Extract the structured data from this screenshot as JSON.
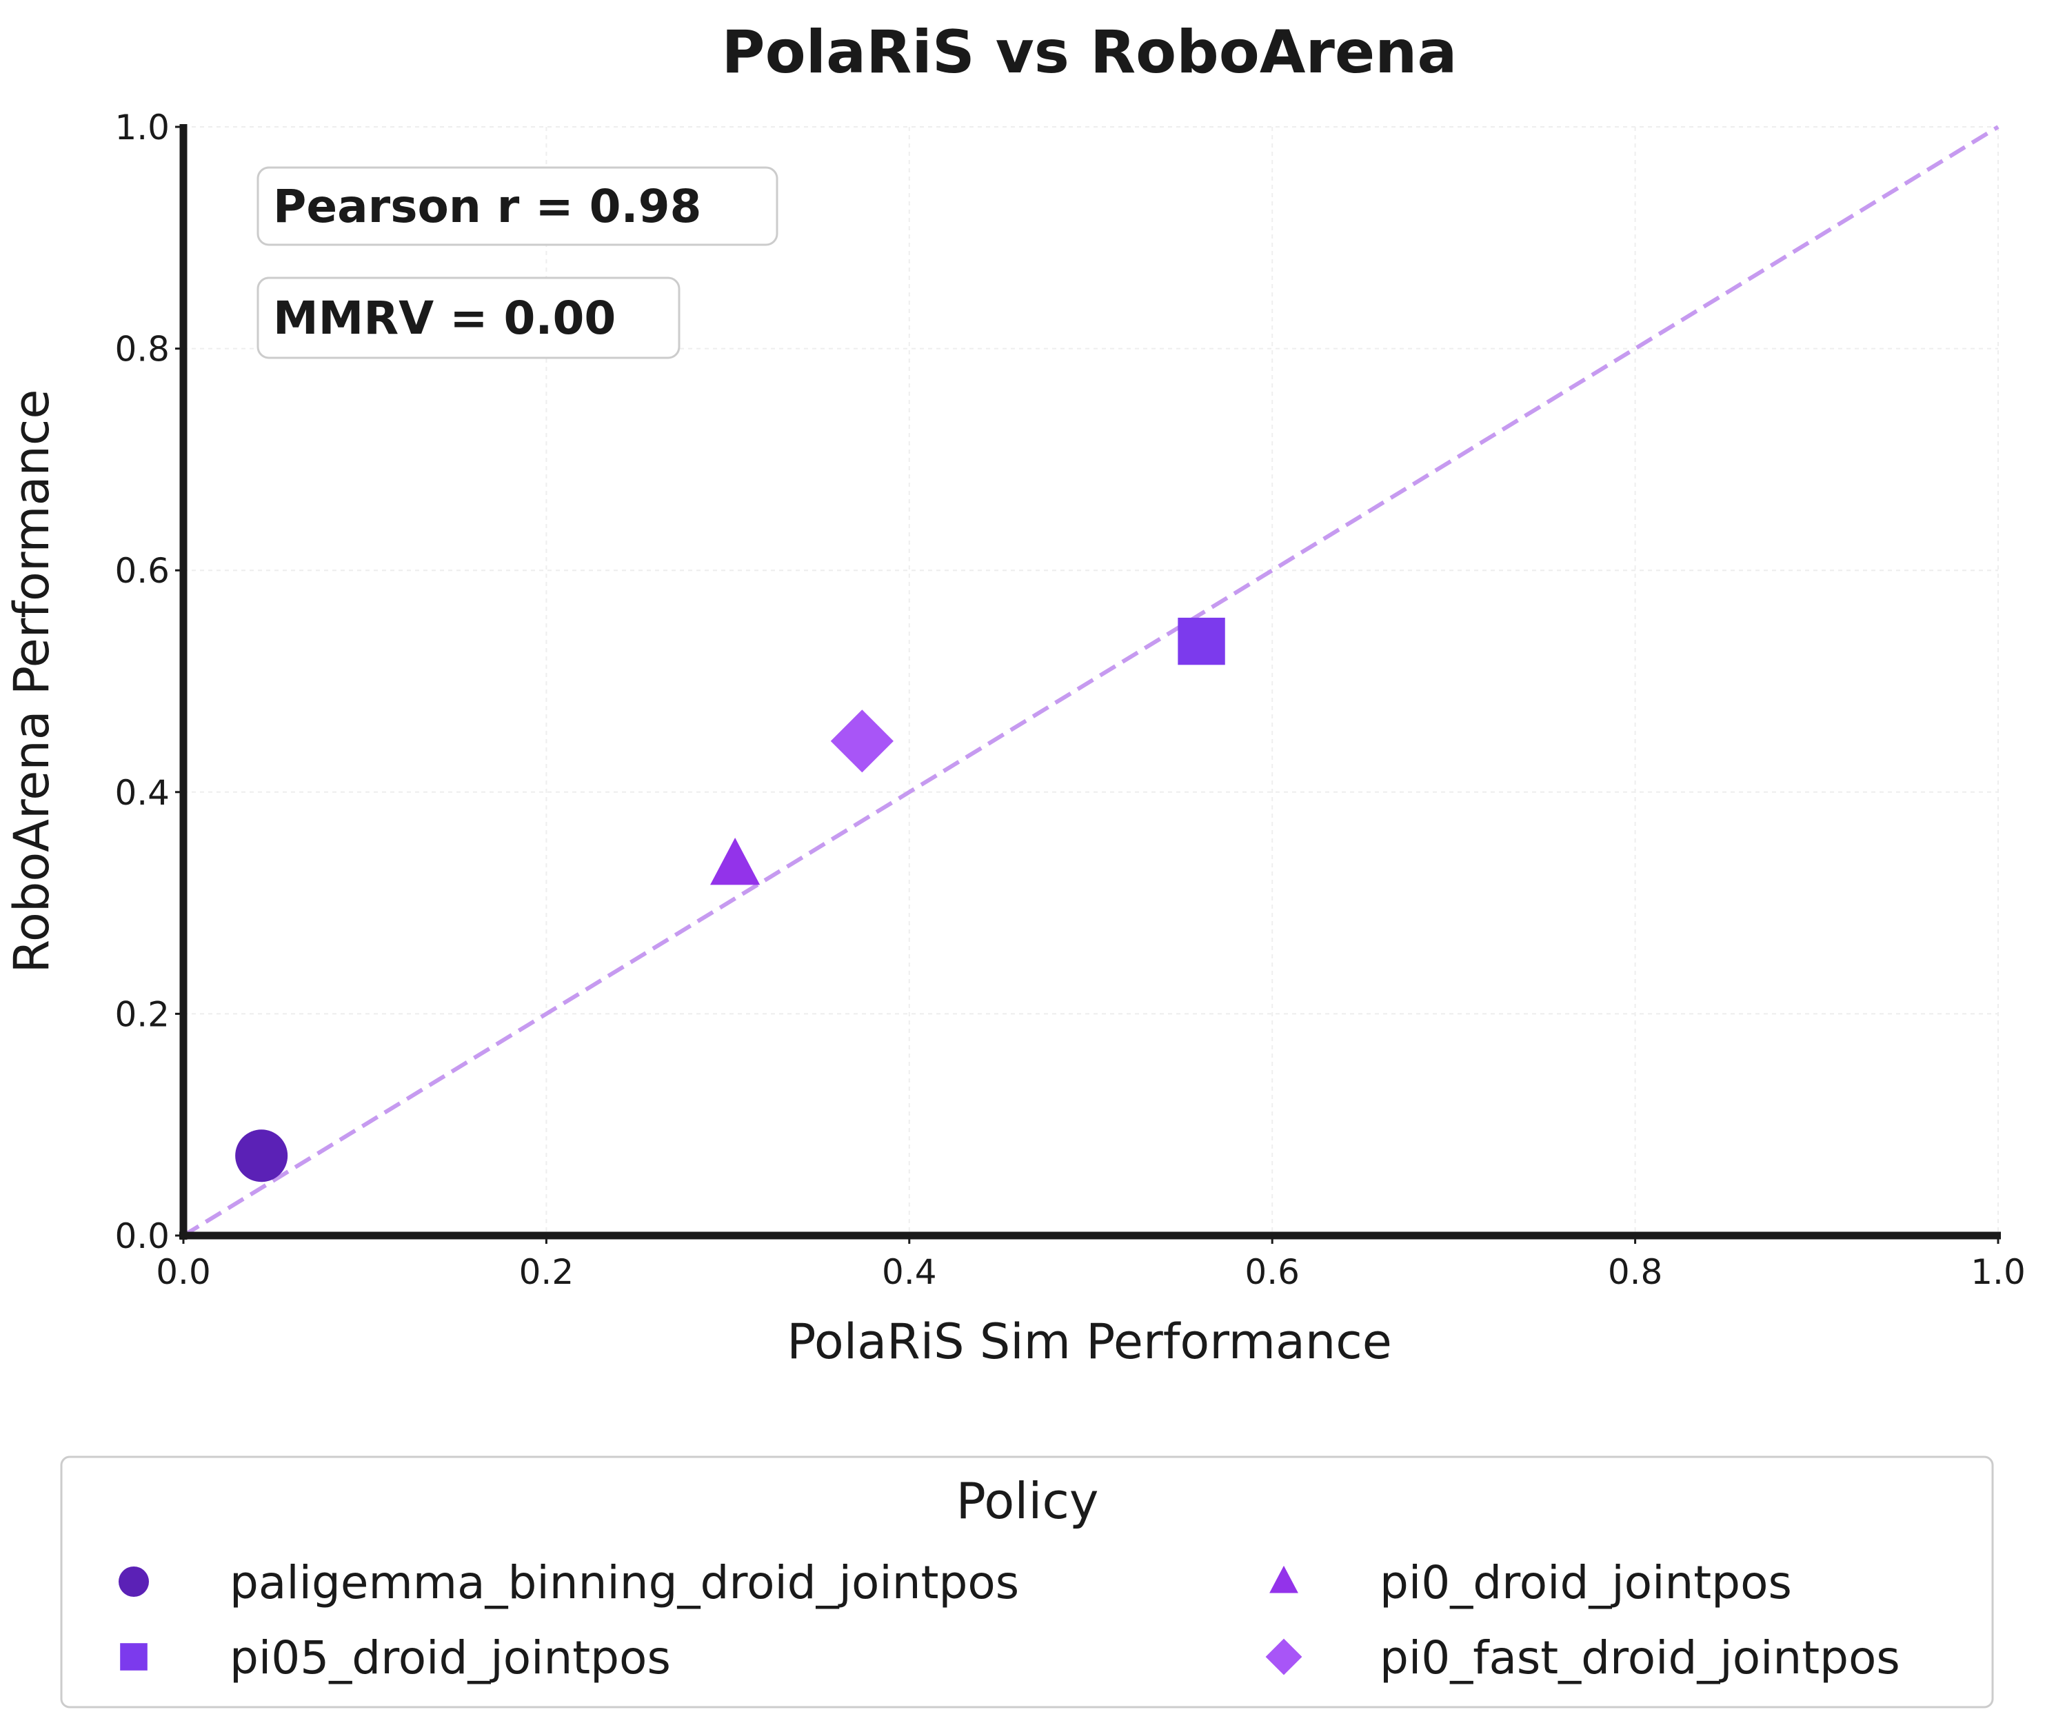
{
  "chart_data": {
    "type": "scatter",
    "title": "PolaRiS vs RoboArena",
    "xlabel": "PolaRiS Sim Performance",
    "ylabel": "RoboArena Performance",
    "xlim": [
      0,
      1
    ],
    "ylim": [
      0,
      1
    ],
    "xticks": [
      "0.0",
      "0.2",
      "0.4",
      "0.6",
      "0.8",
      "1.0"
    ],
    "yticks": [
      "0.0",
      "0.2",
      "0.4",
      "0.6",
      "0.8",
      "1.0"
    ],
    "grid": true,
    "reference_line": {
      "style": "dashed",
      "from": [
        0,
        0
      ],
      "to": [
        1,
        1
      ],
      "color": "#c69af0"
    },
    "annotations": [
      "Pearson r = 0.98",
      "MMRV = 0.00"
    ],
    "legend": {
      "title": "Policy",
      "placement": "bottom",
      "columns": 2
    },
    "series": [
      {
        "name": "paligemma_binning_droid_jointpos",
        "marker": "circle",
        "color": "#5b21b6",
        "x": 0.043,
        "y": 0.072
      },
      {
        "name": "pi05_droid_jointpos",
        "marker": "square",
        "color": "#7c3aed",
        "x": 0.561,
        "y": 0.536
      },
      {
        "name": "pi0_droid_jointpos",
        "marker": "triangle",
        "color": "#9333ea",
        "x": 0.304,
        "y": 0.334
      },
      {
        "name": "pi0_fast_droid_jointpos",
        "marker": "diamond",
        "color": "#a855f7",
        "x": 0.374,
        "y": 0.446
      }
    ]
  }
}
